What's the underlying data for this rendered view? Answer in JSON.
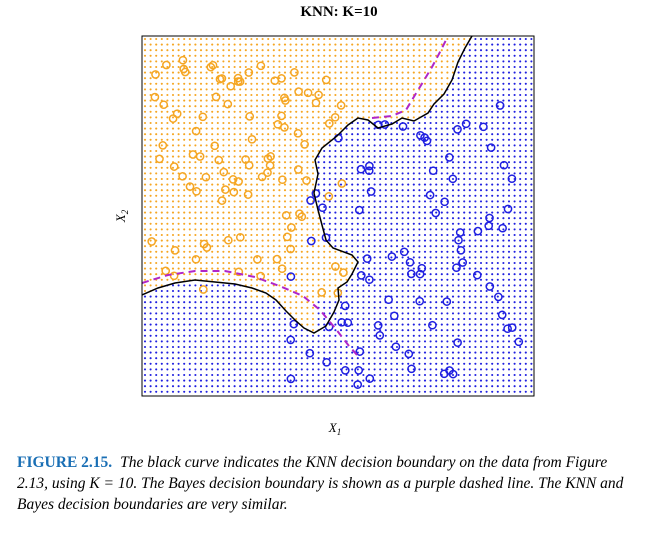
{
  "chart_data": {
    "type": "scatter",
    "title": "KNN: K=10",
    "xlabel": "X1",
    "ylabel": "X2",
    "colors": {
      "orange": "#F5A623",
      "blue": "#1F1FE0",
      "knn_boundary": "#000000",
      "bayes_boundary": "#B026C8"
    },
    "series": [
      {
        "color": "orange",
        "marker": "open-circle"
      },
      {
        "color": "blue",
        "marker": "open-circle"
      }
    ],
    "background_grid": "dotted class regions (orange upper-left, blue lower-right)",
    "lines": [
      {
        "style": "solid",
        "color": "black"
      },
      {
        "style": "dashed",
        "color": "purple"
      }
    ]
  },
  "caption": {
    "label": "FIGURE 2.15.",
    "text": "The black curve indicates the KNN decision boundary on the data from Figure 2.13, using K = 10. The Bayes decision boundary is shown as a purple dashed line. The KNN and Bayes decision boundaries are very similar."
  }
}
